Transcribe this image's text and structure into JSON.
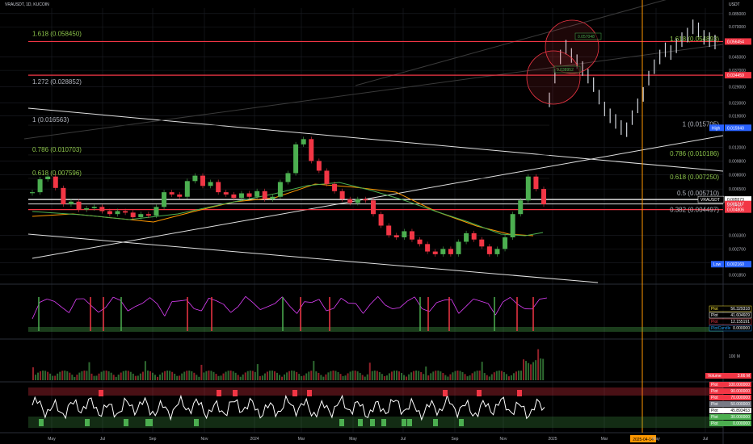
{
  "header": {
    "symbol": "VRAUSDT, 1D, KUCOIN",
    "currency": "USDT"
  },
  "colors": {
    "red": "#f23645",
    "green": "#4caf50",
    "white": "#ffffff",
    "orange": "#ff9800",
    "grid": "#1c1f26",
    "text": "#b2b5be",
    "fib": "#8bc34a"
  },
  "chart_data": {
    "type": "line",
    "y_scale": "log",
    "ylim": [
      0.00165,
      0.09
    ],
    "y_ticks": [
      {
        "v": 0.085,
        "label": "0.085000"
      },
      {
        "v": 0.07,
        "label": "0.070000"
      },
      {
        "v": 0.045,
        "label": "0.045000"
      },
      {
        "v": 0.037,
        "label": "0.037000"
      },
      {
        "v": 0.029,
        "label": "0.029000"
      },
      {
        "v": 0.023,
        "label": "0.023000"
      },
      {
        "v": 0.019,
        "label": "0.019000"
      },
      {
        "v": 0.012,
        "label": "0.012000"
      },
      {
        "v": 0.0098,
        "label": "0.009800"
      },
      {
        "v": 0.008,
        "label": "0.008000"
      },
      {
        "v": 0.0065,
        "label": "0.006500"
      },
      {
        "v": 0.0033,
        "label": "0.003300"
      },
      {
        "v": 0.0027,
        "label": "0.002700"
      },
      {
        "v": 0.0022,
        "label": "0.002200"
      },
      {
        "v": 0.00185,
        "label": "0.001850"
      }
    ],
    "x_ticks": [
      "May",
      "Jul",
      "Sep",
      "Nov",
      "2024",
      "Mar",
      "May",
      "Jul",
      "Sep",
      "Nov",
      "2025",
      "Mar",
      "May",
      "Jul"
    ],
    "left_fib": [
      {
        "label": "1.618 (0.058450)",
        "v": 0.05845,
        "color": "#8bc34a"
      },
      {
        "label": "1.272 (0.028852)",
        "v": 0.028852,
        "color": "#b2b5be"
      },
      {
        "label": "1 (0.016563)",
        "v": 0.016563,
        "color": "#b2b5be"
      },
      {
        "label": "0.786 (0.010703)",
        "v": 0.010703,
        "color": "#8bc34a"
      },
      {
        "label": "0.618 (0.007596)",
        "v": 0.007596,
        "color": "#8bc34a"
      }
    ],
    "right_fib": [
      {
        "label": "1.618 (0.054893)",
        "v": 0.054893,
        "color": "#8bc34a"
      },
      {
        "label": "1 (0.015705)",
        "v": 0.015705,
        "color": "#b2b5be"
      },
      {
        "label": "0.786 (0.010186)",
        "v": 0.010186,
        "color": "#8bc34a"
      },
      {
        "label": "0.618 (0.007250)",
        "v": 0.00725,
        "color": "#8bc34a"
      },
      {
        "label": "0.5 (0.005710)",
        "v": 0.00571,
        "color": "#b2b5be"
      },
      {
        "label": "0.382 (0.004497)",
        "v": 0.004497,
        "color": "#b2b5be"
      }
    ],
    "price_labels": [
      {
        "v": 0.056454,
        "label": "0.056454",
        "bg": "#f23645",
        "fg": "#ffffff"
      },
      {
        "v": 0.034459,
        "label": "0.034459",
        "bg": "#f23645",
        "fg": "#ffffff"
      },
      {
        "v": 0.01594,
        "label": "0.015940",
        "bg": "#2962ff",
        "fg": "#ffffff"
      },
      {
        "v": 0.005573,
        "label": "0.005573",
        "bg": "#ffffff",
        "fg": "#000000"
      },
      {
        "v": 0.005217,
        "label": "0.005217",
        "bg": "#f23645",
        "fg": "#ffffff"
      },
      {
        "v": 0.004806,
        "label": "0.004806",
        "bg": "#f23645",
        "fg": "#ffffff"
      },
      {
        "v": 0.00216,
        "label": "0.002160",
        "bg": "#2962ff",
        "fg": "#ffffff"
      }
    ],
    "price_tags": {
      "high": "High",
      "low": "Low",
      "ticker": "VRAUSDT",
      "countdown": "20:04:27"
    },
    "annotations": [
      "0.057048",
      "0.038952"
    ],
    "price_series": [
      0.0062,
      0.0075,
      0.0078,
      0.0066,
      0.0052,
      0.0054,
      0.0048,
      0.0049,
      0.005,
      0.0047,
      0.0045,
      0.0047,
      0.0046,
      0.0043,
      0.0045,
      0.0044,
      0.005,
      0.0062,
      0.006,
      0.0058,
      0.0073,
      0.0079,
      0.0068,
      0.0072,
      0.0062,
      0.006,
      0.0057,
      0.0061,
      0.0058,
      0.0063,
      0.0056,
      0.0058,
      0.0072,
      0.0082,
      0.0125,
      0.0135,
      0.0098,
      0.0085,
      0.007,
      0.0063,
      0.0056,
      0.0053,
      0.0056,
      0.0055,
      0.0045,
      0.0038,
      0.0033,
      0.0032,
      0.0035,
      0.0031,
      0.0029,
      0.0026,
      0.0025,
      0.0027,
      0.0025,
      0.003,
      0.0034,
      0.0031,
      0.0028,
      0.0025,
      0.0027,
      0.0032,
      0.0045,
      0.0055,
      0.0078,
      0.0065,
      0.0052
    ],
    "projection_series": [
      0.024,
      0.034,
      0.045,
      0.052,
      0.046,
      0.042,
      0.038,
      0.034,
      0.03,
      0.025,
      0.021,
      0.019,
      0.0175,
      0.016,
      0.0155,
      0.0185,
      0.022,
      0.026,
      0.033,
      0.039,
      0.045,
      0.05,
      0.048,
      0.053,
      0.058,
      0.062,
      0.07,
      0.067,
      0.06,
      0.058,
      0.056
    ],
    "vertical_marker_label": "2025-04-14",
    "volume_label": "100 M",
    "volume_last": {
      "name": "Volume",
      "value": "3.66 M"
    },
    "osc1_legend": [
      {
        "name": "Plot",
        "value": "56.329318",
        "color": "#ffeb3b"
      },
      {
        "name": "Plot",
        "value": "41.604609",
        "color": "#ffffff"
      },
      {
        "name": "Plot",
        "value": "12.155191",
        "color": "#f23645"
      },
      {
        "name": "PlotCandle",
        "value": "0.000000",
        "color": "#2196f3"
      }
    ],
    "osc2_legend": [
      {
        "name": "Plot",
        "value": "100.000000",
        "color": "#f23645"
      },
      {
        "name": "Plot",
        "value": "90.000000",
        "color": "#f23645"
      },
      {
        "name": "Plot",
        "value": "70.000000",
        "color": "#f23645"
      },
      {
        "name": "Plot",
        "value": "50.000000",
        "color": "#787b86"
      },
      {
        "name": "Plot",
        "value": "45.893453",
        "color": "#ffffff"
      },
      {
        "name": "Plot",
        "value": "30.000000",
        "color": "#4caf50"
      },
      {
        "name": "Plot",
        "value": "0.000000",
        "color": "#4caf50"
      }
    ]
  }
}
